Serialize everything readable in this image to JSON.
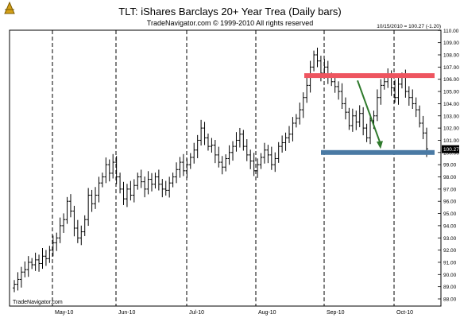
{
  "header": {
    "title": "TLT:  iShares Barclays 20+ Year Trea  (Daily bars)",
    "subtitle": "TradeNavigator.com © 1999-2010 All rights reserved",
    "readout": "10/15/2010 = 100.27 (-1.20)",
    "watermark": "TradeNavigator.com",
    "logo_icon": "trade-navigator-logo-icon"
  },
  "colors": {
    "bars": "#000000",
    "resistance": "#ee5560",
    "support": "#4a7aa4",
    "arrow": "#2f7a2c",
    "grid": "#000000",
    "price_box_bg": "#000000",
    "price_box_text": "#ffffff"
  },
  "chart_data": {
    "type": "ohlc",
    "title": "TLT:  iShares Barclays 20+ Year Trea  (Daily bars)",
    "subtitle": "TradeNavigator.com © 1999-2010 All rights reserved",
    "x_tick_labels": [
      "May-10",
      "Jun-10",
      "Jul-10",
      "Aug-10",
      "Sep-10",
      "Oct-10"
    ],
    "y_tick_labels": [
      "88.00",
      "89.00",
      "90.00",
      "91.00",
      "92.00",
      "93.00",
      "94.00",
      "95.00",
      "96.00",
      "97.00",
      "98.00",
      "99.00",
      "100.00",
      "101.00",
      "102.00",
      "103.00",
      "104.00",
      "105.00",
      "106.00",
      "107.00",
      "108.00",
      "109.00",
      "110.00"
    ],
    "ylim": [
      88,
      110
    ],
    "y_axis_side": "right",
    "vertical_grid": "dashed lines at month boundaries",
    "last_price_label": "100.27",
    "annotations": {
      "resistance_level": 106.3,
      "support_level": 100.0,
      "arrow": {
        "from_price": 105.9,
        "to_price": 100.3,
        "direction": "down"
      }
    },
    "close_path": [
      89.2,
      89.6,
      90.2,
      90.4,
      91.0,
      90.8,
      91.2,
      90.9,
      91.5,
      91.3,
      92.0,
      92.6,
      93.0,
      94.0,
      94.5,
      96.0,
      95.2,
      93.8,
      93.0,
      93.5,
      94.5,
      96.5,
      95.8,
      96.5,
      97.5,
      98.0,
      99.0,
      98.3,
      99.2,
      98.0,
      97.0,
      96.2,
      97.0,
      96.5,
      97.3,
      98.0,
      97.6,
      97.0,
      97.8,
      97.4,
      98.0,
      97.4,
      97.0,
      96.9,
      97.5,
      98.0,
      98.6,
      99.2,
      98.5,
      99.0,
      99.6,
      100.2,
      101.0,
      102.0,
      101.2,
      100.5,
      100.6,
      99.8,
      99.2,
      98.8,
      99.5,
      100.0,
      100.5,
      101.0,
      101.5,
      100.5,
      99.8,
      99.3,
      98.5,
      99.0,
      99.6,
      100.2,
      99.8,
      99.0,
      99.5,
      100.5,
      100.8,
      101.2,
      101.5,
      102.4,
      102.8,
      103.5,
      104.5,
      105.5,
      107.0,
      108.0,
      107.5,
      106.5,
      107.0,
      106.2,
      105.8,
      105.4,
      105.0,
      104.0,
      103.3,
      102.2,
      103.0,
      102.5,
      103.2,
      102.0,
      101.2,
      102.6,
      103.0,
      104.5,
      105.5,
      105.8,
      106.3,
      105.3,
      104.5,
      105.6,
      106.2,
      105.0,
      104.5,
      104.0,
      103.5,
      102.4,
      101.6,
      100.3
    ]
  }
}
